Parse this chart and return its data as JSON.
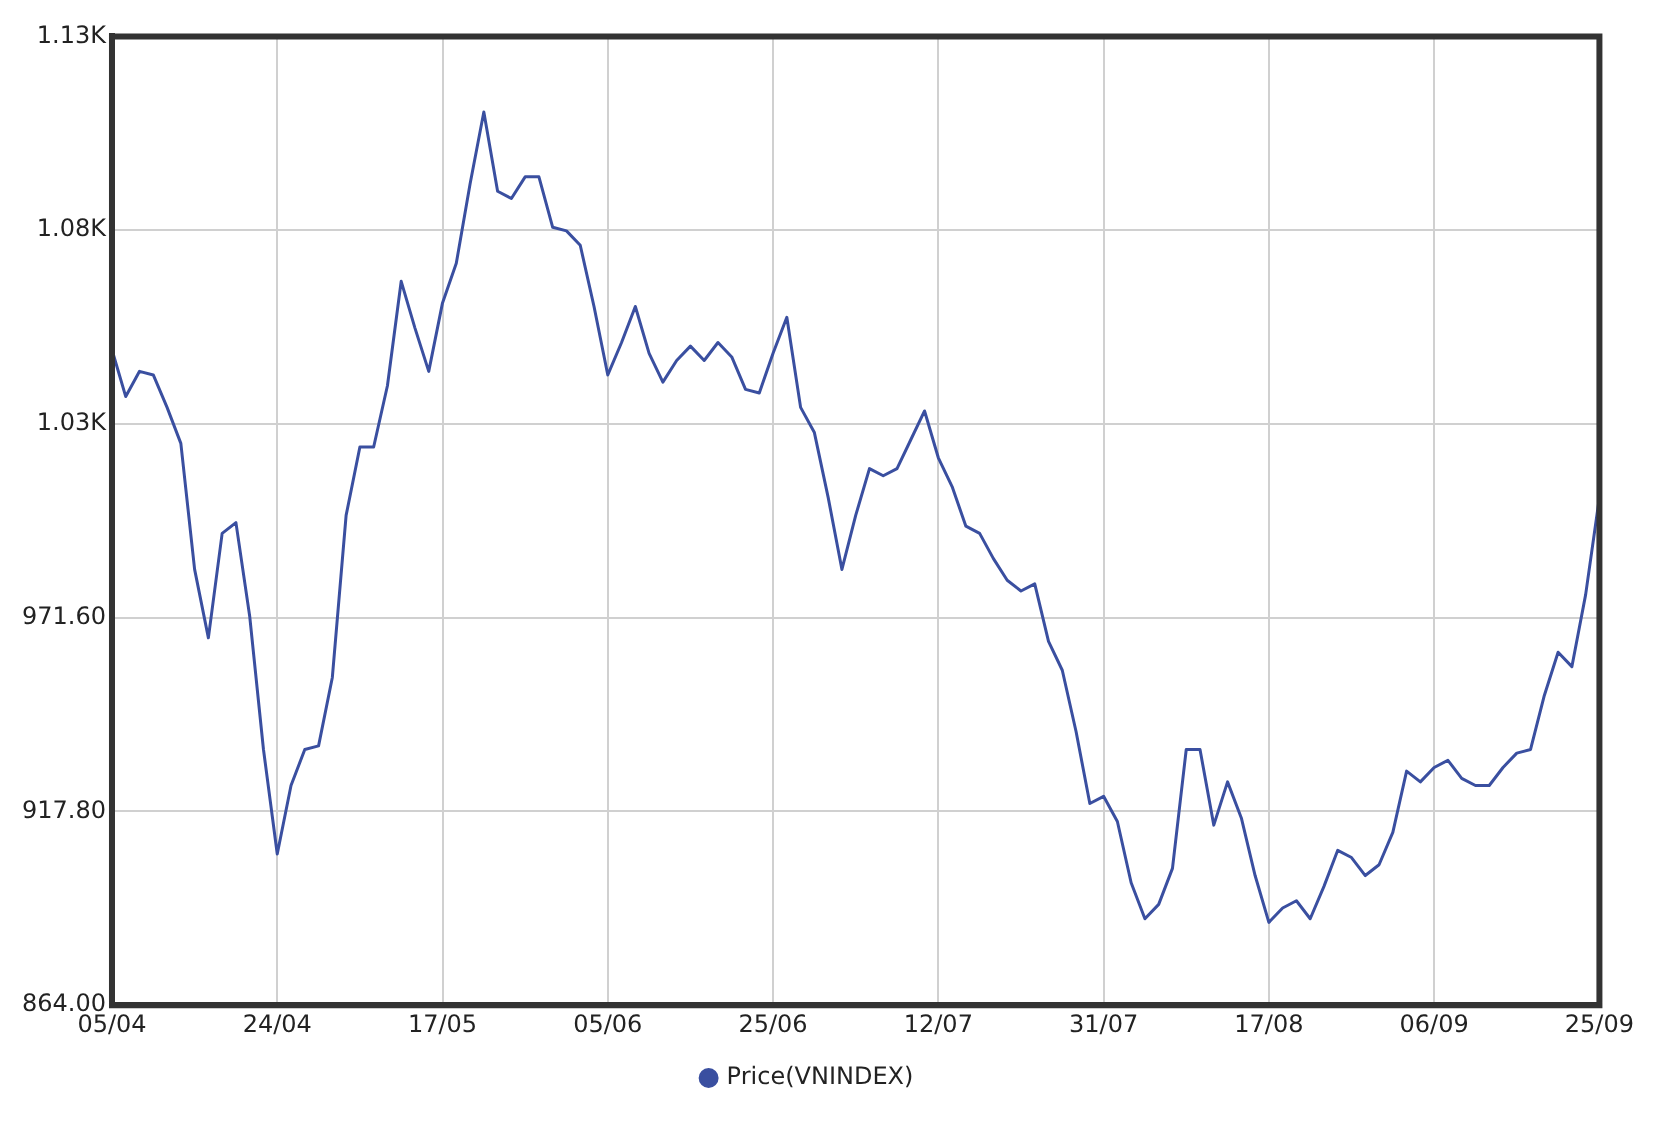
{
  "chart_data": {
    "type": "line",
    "categories": [
      "05/04",
      null,
      null,
      null,
      null,
      null,
      null,
      null,
      null,
      null,
      null,
      null,
      "24/04",
      null,
      null,
      null,
      null,
      null,
      null,
      null,
      null,
      null,
      null,
      null,
      "17/05",
      null,
      null,
      null,
      null,
      null,
      null,
      null,
      null,
      null,
      null,
      null,
      "05/06",
      null,
      null,
      null,
      null,
      null,
      null,
      null,
      null,
      null,
      null,
      null,
      "25/06",
      null,
      null,
      null,
      null,
      null,
      null,
      null,
      null,
      null,
      null,
      null,
      "12/07",
      null,
      null,
      null,
      null,
      null,
      null,
      null,
      null,
      null,
      null,
      null,
      "31/07",
      null,
      null,
      null,
      null,
      null,
      null,
      null,
      null,
      null,
      null,
      null,
      "17/08",
      null,
      null,
      null,
      null,
      null,
      null,
      null,
      null,
      null,
      null,
      null,
      "06/09",
      null,
      null,
      null,
      null,
      null,
      null,
      null,
      null,
      null,
      null,
      null,
      "25/09"
    ],
    "series": [
      {
        "name": "Price(VNINDEX)",
        "color": "#3a4fa0",
        "values": [
          1046,
          1033,
          1040,
          1039,
          1030,
          1020,
          985,
          966,
          995,
          998,
          972,
          935,
          906,
          925,
          935,
          936,
          955,
          1000,
          1019,
          1019,
          1036,
          1065,
          1052,
          1040,
          1059,
          1070,
          1092,
          1112,
          1090,
          1088,
          1094,
          1094,
          1080,
          1079,
          1075,
          1058,
          1039,
          1048,
          1058,
          1045,
          1037,
          1043,
          1047,
          1043,
          1048,
          1044,
          1035,
          1034,
          1045,
          1055,
          1030,
          1023,
          1005,
          985,
          1000,
          1013,
          1011,
          1013,
          1021,
          1029,
          1016,
          1008,
          997,
          995,
          988,
          982,
          979,
          981,
          965,
          957,
          940,
          920,
          922,
          915,
          898,
          888,
          892,
          902,
          935,
          935,
          914,
          926,
          916,
          900,
          887,
          891,
          893,
          888,
          897,
          907,
          905,
          900,
          903,
          912,
          929,
          926,
          930,
          932,
          927,
          925,
          925,
          930,
          934,
          935,
          950,
          962,
          958,
          978,
          1005
        ]
      }
    ],
    "ylim": [
      864,
      1133
    ],
    "yticks": [
      {
        "value": 864,
        "label": "864.00"
      },
      {
        "value": 917.8,
        "label": "917.80"
      },
      {
        "value": 971.6,
        "label": "971.60"
      },
      {
        "value": 1025.4,
        "label": "1.03K"
      },
      {
        "value": 1079.2,
        "label": "1.08K"
      },
      {
        "value": 1133,
        "label": "1.13K"
      }
    ],
    "grid": true,
    "legend": "bottom",
    "marker": "none",
    "line_style": "solid"
  }
}
